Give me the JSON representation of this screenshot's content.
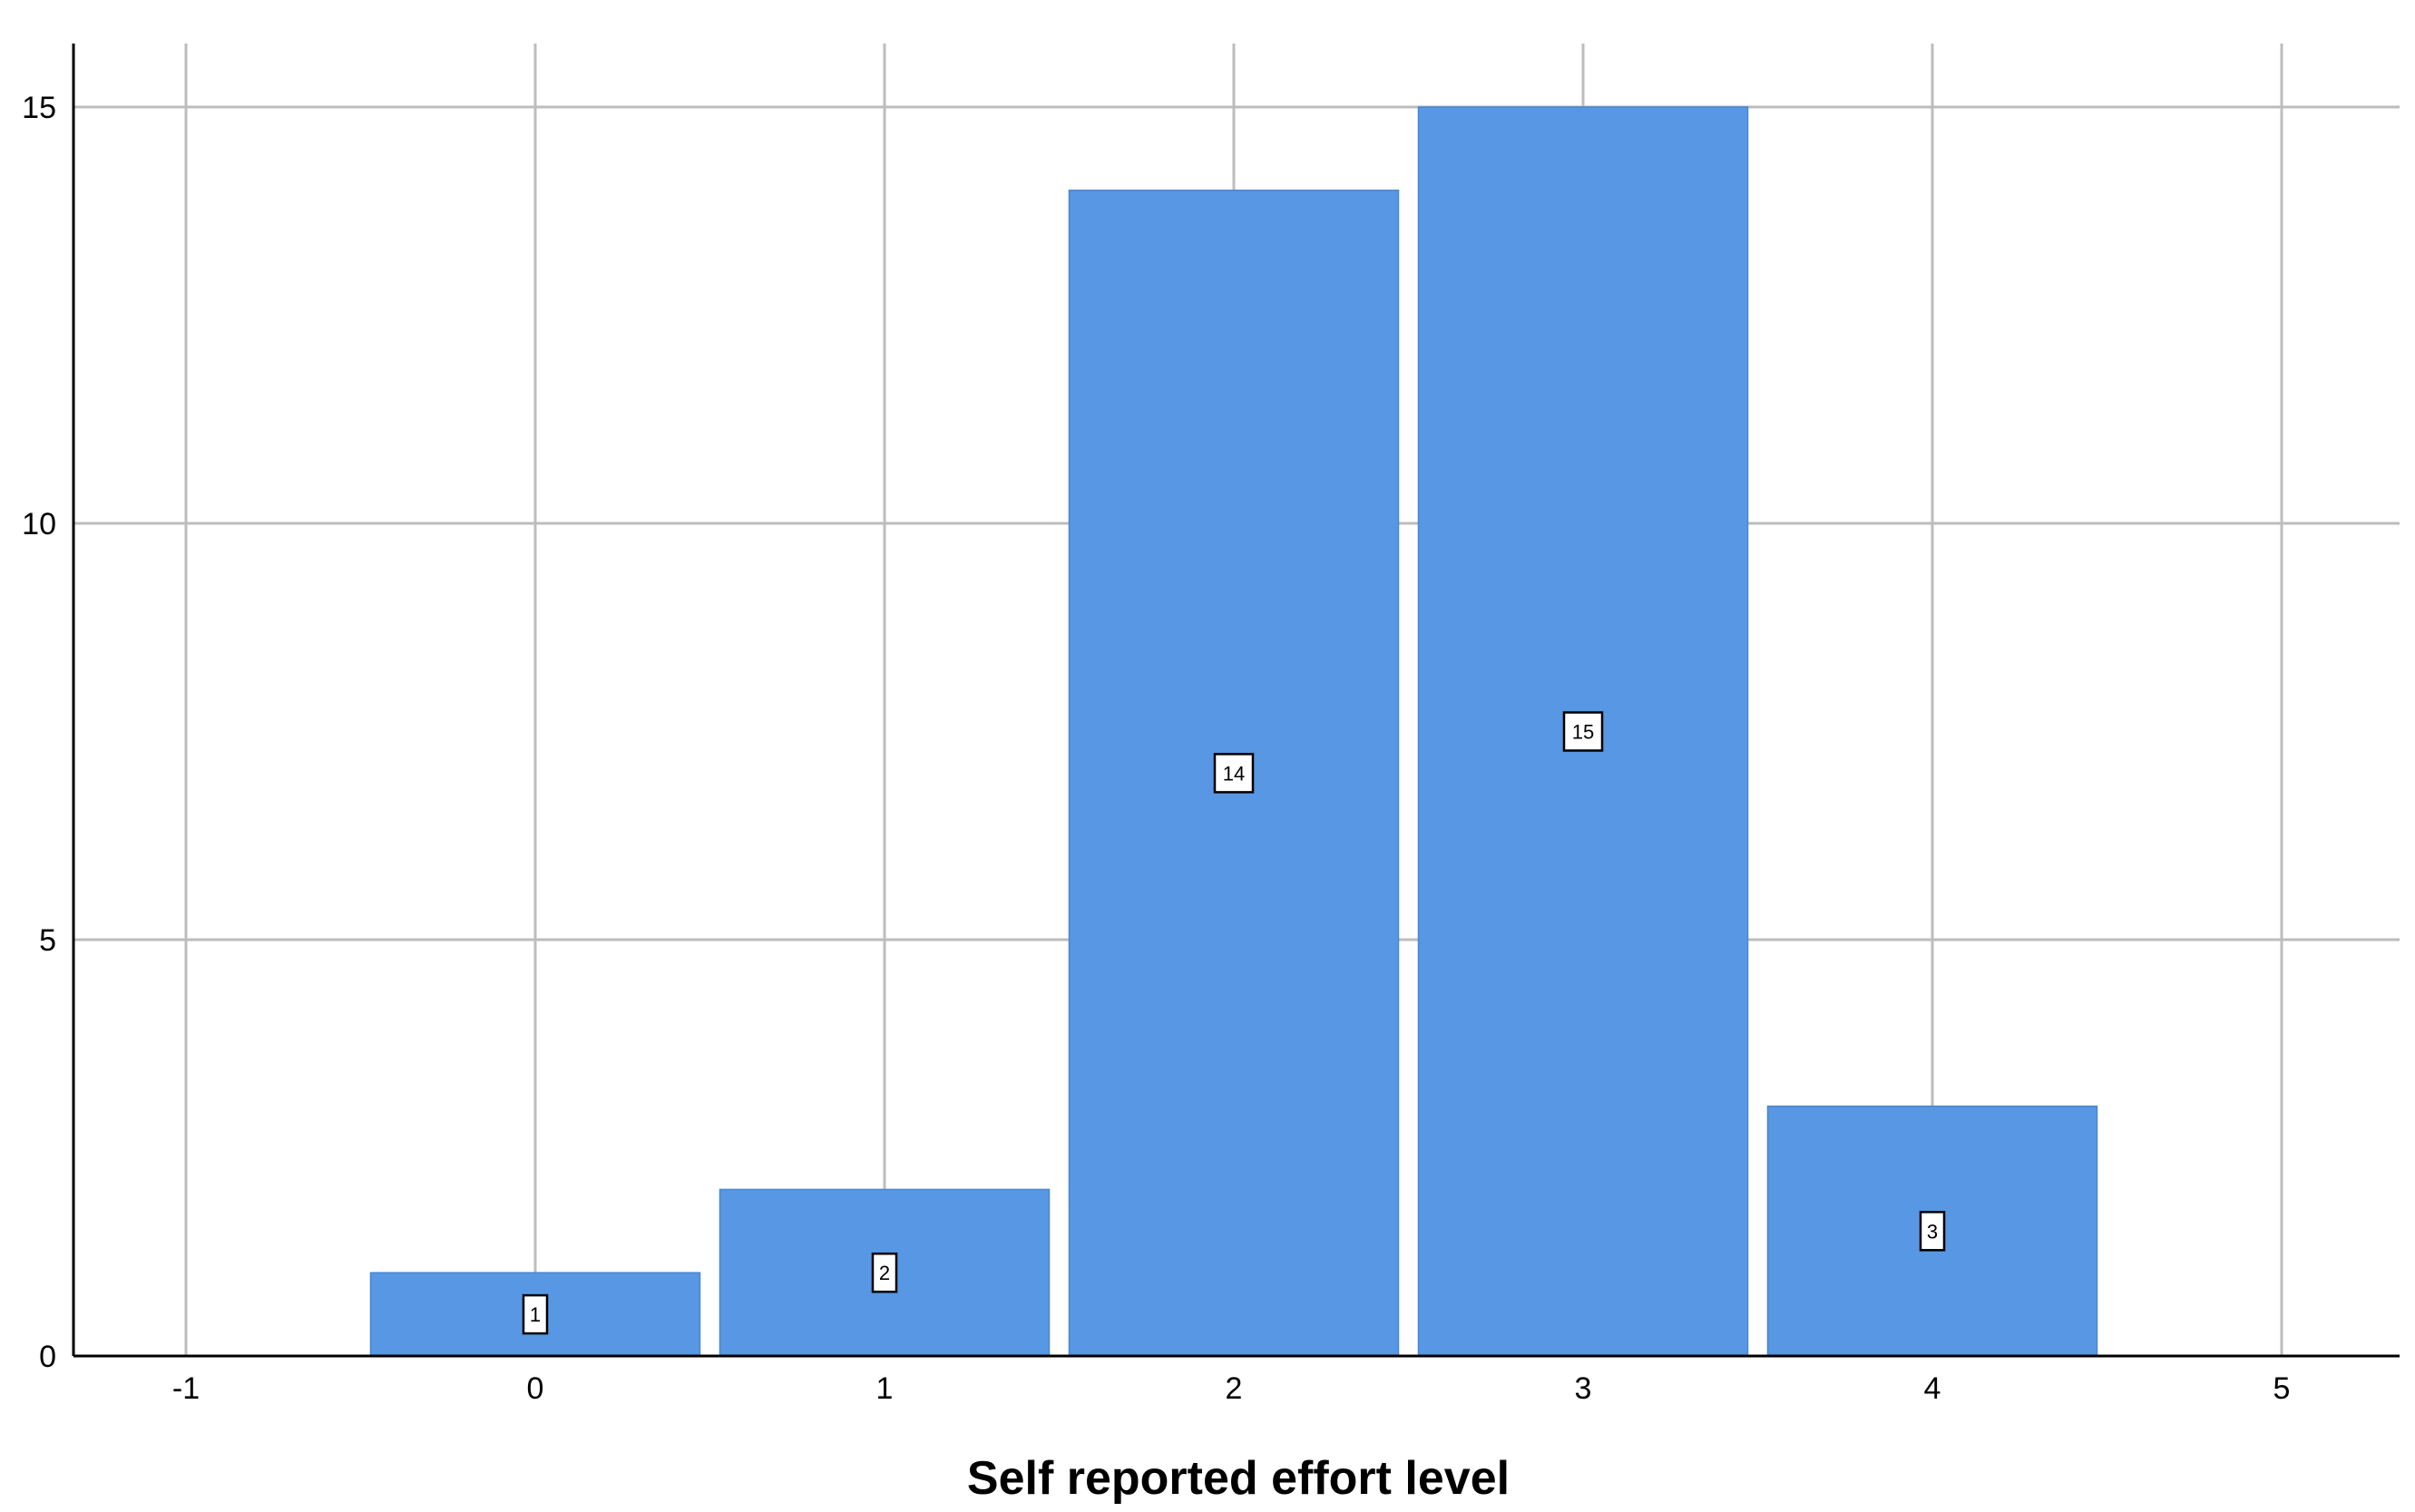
{
  "chart_data": {
    "type": "bar",
    "title": "",
    "xlabel": "Self reported effort level",
    "ylabel": "",
    "x": [
      0,
      1,
      2,
      3,
      4
    ],
    "values": [
      1,
      2,
      14,
      15,
      3
    ],
    "data_labels": [
      "1",
      "2",
      "14",
      "15",
      "3"
    ],
    "xlim": [
      -1,
      5
    ],
    "ylim": [
      0,
      15
    ],
    "x_ticks": [
      -1,
      0,
      1,
      2,
      3,
      4,
      5
    ],
    "y_ticks": [
      0,
      5,
      10,
      15
    ],
    "x_tick_labels": [
      "-1",
      "0",
      "1",
      "2",
      "3",
      "4",
      "5"
    ],
    "y_tick_labels": [
      "0",
      "5",
      "10",
      "15"
    ],
    "grid": true,
    "legend": "none",
    "bar_color": "#5797e3",
    "grid_color": "#bdbdbd"
  }
}
